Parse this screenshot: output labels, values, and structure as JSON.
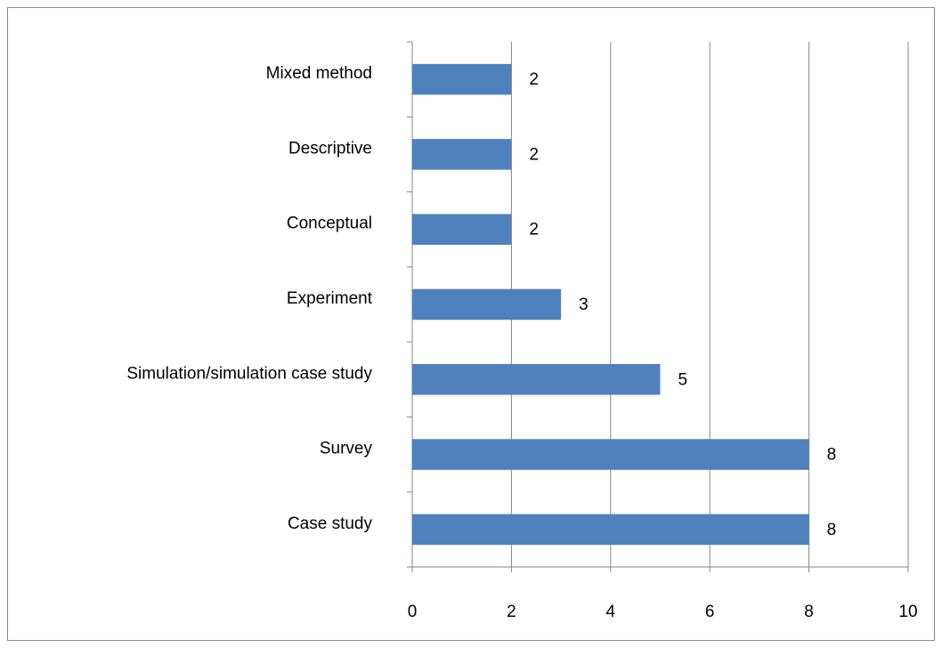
{
  "chart_data": {
    "type": "bar",
    "orientation": "horizontal",
    "categories": [
      "Case study",
      "Survey",
      "Simulation/simulation case study",
      "Experiment",
      "Conceptual",
      "Descriptive",
      "Mixed method"
    ],
    "values": [
      8,
      8,
      5,
      3,
      2,
      2,
      2
    ],
    "color": "#4f81bd",
    "xlim": [
      0,
      10
    ],
    "xticks": [
      0,
      2,
      4,
      6,
      8,
      10
    ],
    "grid": true
  }
}
